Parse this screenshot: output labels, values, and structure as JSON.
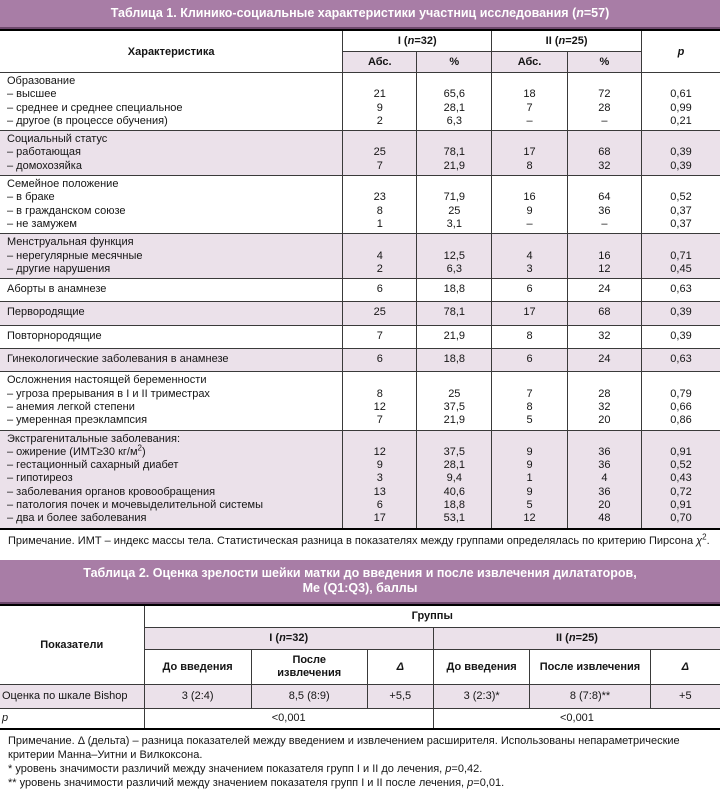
{
  "colors": {
    "band": "#a87da6",
    "shade": "#ebe1ea",
    "border": "#3a3a3a",
    "band_edge": "#6d486c"
  },
  "table1": {
    "title": "Таблица 1. Клинико-социальные характеристики участниц исследования ({i}n{/i}=57)",
    "col_label": "Характеристика",
    "group1": "I ({i}n{/i}=32)",
    "group2": "II ({i}n{/i}=25)",
    "p_label": "{i}p{/i}",
    "sub": [
      "Абс.",
      "%",
      "Абс.",
      "%"
    ],
    "groups": [
      {
        "label": [
          "Образование",
          "– высшее",
          "– среднее и среднее специальное",
          "– другое (в процессе обучения)"
        ],
        "c": [
          [
            "",
            "21",
            "9",
            "2"
          ],
          [
            "",
            "65,6",
            "28,1",
            "6,3"
          ],
          [
            "",
            "18",
            "7",
            "–"
          ],
          [
            "",
            "72",
            "28",
            "–"
          ],
          [
            "",
            "0,61",
            "0,99",
            "0,21"
          ]
        ]
      },
      {
        "label": [
          "Социальный статус",
          "– работающая",
          "– домохозяйка"
        ],
        "c": [
          [
            "",
            "25",
            "7"
          ],
          [
            "",
            "78,1",
            "21,9"
          ],
          [
            "",
            "17",
            "8"
          ],
          [
            "",
            "68",
            "32"
          ],
          [
            "",
            "0,39",
            "0,39"
          ]
        ]
      },
      {
        "label": [
          "Семейное положение",
          "– в браке",
          "– в гражданском союзе",
          "– не замужем"
        ],
        "c": [
          [
            "",
            "23",
            "8",
            "1"
          ],
          [
            "",
            "71,9",
            "25",
            "3,1"
          ],
          [
            "",
            "16",
            "9",
            "–"
          ],
          [
            "",
            "64",
            "36",
            "–"
          ],
          [
            "",
            "0,52",
            "0,37",
            "0,37"
          ]
        ]
      },
      {
        "label": [
          "Менструальная функция",
          "– нерегулярные месячные",
          "– другие нарушения"
        ],
        "c": [
          [
            "",
            "4",
            "2"
          ],
          [
            "",
            "12,5",
            "6,3"
          ],
          [
            "",
            "4",
            "3"
          ],
          [
            "",
            "16",
            "12"
          ],
          [
            "",
            "0,71",
            "0,45"
          ]
        ]
      },
      {
        "label": [
          "Аборты в анамнезе"
        ],
        "c": [
          [
            "6"
          ],
          [
            "18,8"
          ],
          [
            "6"
          ],
          [
            "24"
          ],
          [
            "0,63"
          ]
        ]
      },
      {
        "label": [
          "Первородящие"
        ],
        "c": [
          [
            "25"
          ],
          [
            "78,1"
          ],
          [
            "17"
          ],
          [
            "68"
          ],
          [
            "0,39"
          ]
        ]
      },
      {
        "label": [
          "Повторнородящие"
        ],
        "c": [
          [
            "7"
          ],
          [
            "21,9"
          ],
          [
            "8"
          ],
          [
            "32"
          ],
          [
            "0,39"
          ]
        ]
      },
      {
        "label": [
          "Гинекологические заболевания в анамнезе"
        ],
        "c": [
          [
            "6"
          ],
          [
            "18,8"
          ],
          [
            "6"
          ],
          [
            "24"
          ],
          [
            "0,63"
          ]
        ]
      },
      {
        "label": [
          "Осложнения настоящей беременности",
          "– угроза прерывания в I и II триместрах",
          "– анемия легкой степени",
          "– умеренная преэклампсия"
        ],
        "c": [
          [
            "",
            "8",
            "12",
            "7"
          ],
          [
            "",
            "25",
            "37,5",
            "21,9"
          ],
          [
            "",
            "7",
            "8",
            "5"
          ],
          [
            "",
            "28",
            "32",
            "20"
          ],
          [
            "",
            "0,79",
            "0,66",
            "0,86"
          ]
        ]
      },
      {
        "label": [
          "Экстрагенитальные заболевания:",
          "– ожирение (ИМТ≥30 кг/м{sup}2{/sup})",
          "– гестационный сахарный диабет",
          "– гипотиреоз",
          "– заболевания органов кровообращения",
          "– патология почек и мочевыделительной системы",
          "– два и более заболевания"
        ],
        "c": [
          [
            "",
            "12",
            "9",
            "3",
            "13",
            "6",
            "17"
          ],
          [
            "",
            "37,5",
            "28,1",
            "9,4",
            "40,6",
            "18,8",
            "53,1"
          ],
          [
            "",
            "9",
            "9",
            "1",
            "9",
            "5",
            "12"
          ],
          [
            "",
            "36",
            "36",
            "4",
            "36",
            "20",
            "48"
          ],
          [
            "",
            "0,91",
            "0,52",
            "0,43",
            "0,72",
            "0,91",
            "0,70"
          ]
        ]
      }
    ],
    "note": "Примечание. ИМТ – индекс массы тела. Статистическая разница в показателях между группами определялась по критерию Пирсона {i}χ{/i}{sup}2{/sup}."
  },
  "table2": {
    "title": "Таблица 2. Оценка зрелости шейки матки до введения и после извлечения дилататоров,{br}Ме (Q1:Q3), баллы",
    "col_label": "Показатели",
    "groups_label": "Группы",
    "group1": "I ({i}n{/i}=32)",
    "group2": "II ({i}n{/i}=25)",
    "sub": [
      "До введения",
      "После{br}извлечения",
      "{i}Δ{/i}",
      "До введения",
      "После извлечения",
      "{i}Δ{/i}"
    ],
    "row": {
      "label": "Оценка по шкале Bishop",
      "values": [
        "3 (2:4)",
        "8,5 (8:9)",
        "+5,5",
        "3 (2:3)*",
        "8 (7:8)**",
        "+5"
      ]
    },
    "p_row": {
      "label": "{i}p{/i}",
      "v1": "<0,001",
      "v2": "<0,001"
    },
    "notes": [
      "Примечание. Δ (дельта) – разница показателей между введением и извлечением расширителя. Использованы непараметрические критерии Манна–Уитни и Вилкоксона.",
      "* уровень значимости различий между значением показателя групп I и II до лечения, {i}p{/i}=0,42.",
      "** уровень значимости различий между значением показателя групп I и II после лечения, {i}p{/i}=0,01."
    ]
  }
}
